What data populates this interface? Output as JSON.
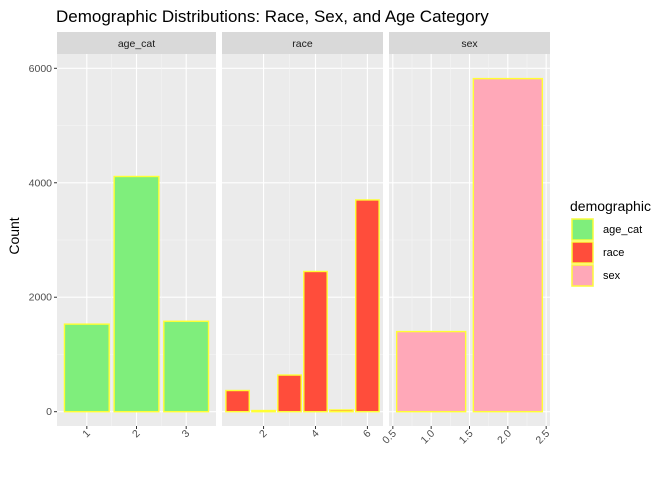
{
  "chart_data": {
    "type": "bar",
    "title": "Demographic Distributions: Race, Sex, and Age Category",
    "ylabel": "Count",
    "xlabel": "",
    "ylim": [
      -250,
      6250
    ],
    "yticks": [
      0,
      2000,
      4000,
      6000
    ],
    "grid": true,
    "legend": {
      "title": "demographic",
      "placement": "right",
      "entries": [
        {
          "label": "age_cat",
          "color": "#7FEE7C"
        },
        {
          "label": "race",
          "color": "#FF4D3B"
        },
        {
          "label": "sex",
          "color": "#FFA8B8"
        }
      ]
    },
    "bar_outline_color": "#FFFF33",
    "panels": [
      {
        "name": "age_cat",
        "color": "#7FEE7C",
        "xlim": [
          0.4,
          3.6
        ],
        "xticks": [
          1,
          2,
          3
        ],
        "xticklabels": [
          "1",
          "2",
          "3"
        ],
        "bar_width": 0.9,
        "x": [
          1,
          2,
          3
        ],
        "values": [
          1530,
          4110,
          1580
        ]
      },
      {
        "name": "race",
        "color": "#FF4D3B",
        "xlim": [
          0.4,
          6.6
        ],
        "xticks": [
          2,
          4,
          6
        ],
        "xticklabels": [
          "2",
          "4",
          "6"
        ],
        "bar_width": 0.9,
        "x": [
          1,
          2,
          3,
          4,
          5,
          6
        ],
        "values": [
          370,
          20,
          640,
          2450,
          30,
          3700
        ]
      },
      {
        "name": "sex",
        "color": "#FFA8B8",
        "xlim": [
          0.45,
          2.55
        ],
        "xticks": [
          0.5,
          1.0,
          1.5,
          2.0,
          2.5
        ],
        "xticklabels": [
          "0.5",
          "1.0",
          "1.5",
          "2.0",
          "2.5"
        ],
        "bar_width": 0.9,
        "x": [
          1,
          2
        ],
        "values": [
          1400,
          5820
        ]
      }
    ]
  }
}
